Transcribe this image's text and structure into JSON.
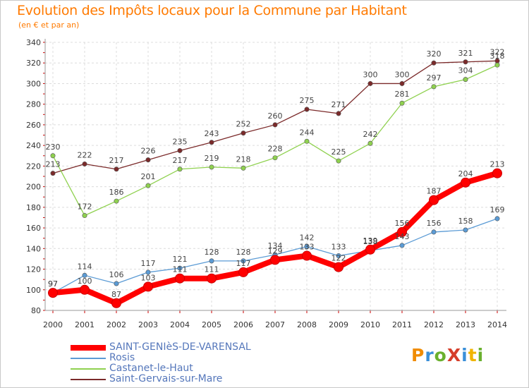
{
  "header": {
    "title": "Evolution des Impôts locaux pour la Commune par Habitant",
    "subtitle": "(en € et par an)"
  },
  "logo": {
    "text": "ProXiti",
    "colors": [
      "#f08c00",
      "#3a8fd9",
      "#6ab02e",
      "#d63e2a",
      "#3a8fd9",
      "#f0b400",
      "#6ab02e"
    ]
  },
  "chart_data": {
    "type": "line",
    "title": "Evolution des Impôts locaux pour la Commune par Habitant",
    "subtitle": "(en € et par an)",
    "xlabel": "",
    "ylabel": "",
    "ylim": [
      80,
      340
    ],
    "yticks": [
      80,
      100,
      120,
      140,
      160,
      180,
      200,
      220,
      240,
      260,
      280,
      300,
      320,
      340
    ],
    "x": [
      "2000",
      "2001",
      "2002",
      "2003",
      "2004",
      "2005",
      "2006",
      "2007",
      "2008",
      "2009",
      "2010",
      "2011",
      "2012",
      "2013",
      "2014"
    ],
    "grid": true,
    "legend_position": "bottom-left",
    "series": [
      {
        "name": "SAINT-GENIèS-DE-VARENSAL",
        "color": "#ff0000",
        "values": [
          97,
          100,
          87,
          103,
          111,
          111,
          117,
          129,
          133,
          122,
          139,
          156,
          187,
          204,
          213
        ]
      },
      {
        "name": "Rosis",
        "color": "#5b9bd5",
        "values": [
          97,
          114,
          106,
          117,
          121,
          128,
          128,
          134,
          142,
          133,
          138,
          143,
          156,
          158,
          169
        ]
      },
      {
        "name": "Castanet-le-Haut",
        "color": "#8fd14f",
        "values": [
          230,
          172,
          186,
          201,
          217,
          219,
          218,
          228,
          244,
          225,
          242,
          281,
          297,
          304,
          318
        ]
      },
      {
        "name": "Saint-Gervais-sur-Mare",
        "color": "#7b2a2a",
        "values": [
          213,
          222,
          217,
          226,
          235,
          243,
          252,
          260,
          275,
          271,
          300,
          300,
          320,
          321,
          322
        ]
      }
    ]
  }
}
